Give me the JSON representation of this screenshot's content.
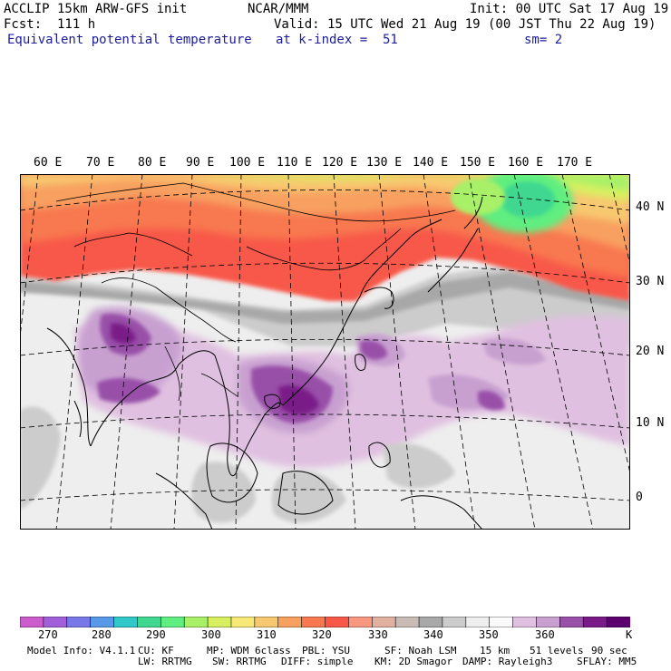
{
  "header": {
    "model": "ACCLIP 15km ARW-GFS init",
    "org": "NCAR/MMM",
    "init": "Init: 00 UTC Sat 17 Aug 19",
    "fcst": "Fcst:  111 h",
    "valid": "Valid: 15 UTC Wed 21 Aug 19 (00 JST Thu 22 Aug 19)",
    "field": "Equivalent potential temperature",
    "level": "at k-index =  51",
    "smooth": "sm= 2"
  },
  "map": {
    "lon_labels": [
      "60 E",
      "70 E",
      "80 E",
      "90 E",
      "100 E",
      "110 E",
      "120 E",
      "130 E",
      "140 E",
      "150 E",
      "160 E",
      "170 E"
    ],
    "lat_labels": [
      "40 N",
      "30 N",
      "20 N",
      "10 N",
      "0"
    ]
  },
  "colorbar": {
    "colors": [
      "#cc5ccc",
      "#a060d8",
      "#7878e8",
      "#5898e8",
      "#30c8c8",
      "#40d890",
      "#60ee80",
      "#a8f068",
      "#d8f060",
      "#f8e878",
      "#f8c870",
      "#f8a060",
      "#f87850",
      "#f85848",
      "#f89880",
      "#e0b0a0",
      "#c8bcb4",
      "#a8a8a8",
      "#cccccc",
      "#eeeeee",
      "#fafafa",
      "#e0c0e0",
      "#c8a0d0",
      "#9850a8",
      "#7a1a88",
      "#5c0070"
    ],
    "labels": [
      "270",
      "280",
      "290",
      "300",
      "310",
      "320",
      "330",
      "340",
      "350",
      "360"
    ],
    "unit": "K"
  },
  "footer": {
    "line1": [
      "Model Info: V4.1.1",
      "CU: KF",
      "MP: WDM 6class",
      "PBL: YSU",
      "SF: Noah LSM",
      "15 km",
      "51 levels",
      "90 sec"
    ],
    "line2": [
      "LW: RRTMG",
      "SW: RRTMG",
      "DIFF: simple",
      "KM: 2D Smagor",
      "DAMP: Rayleigh3",
      "SFLAY: MM5"
    ]
  }
}
